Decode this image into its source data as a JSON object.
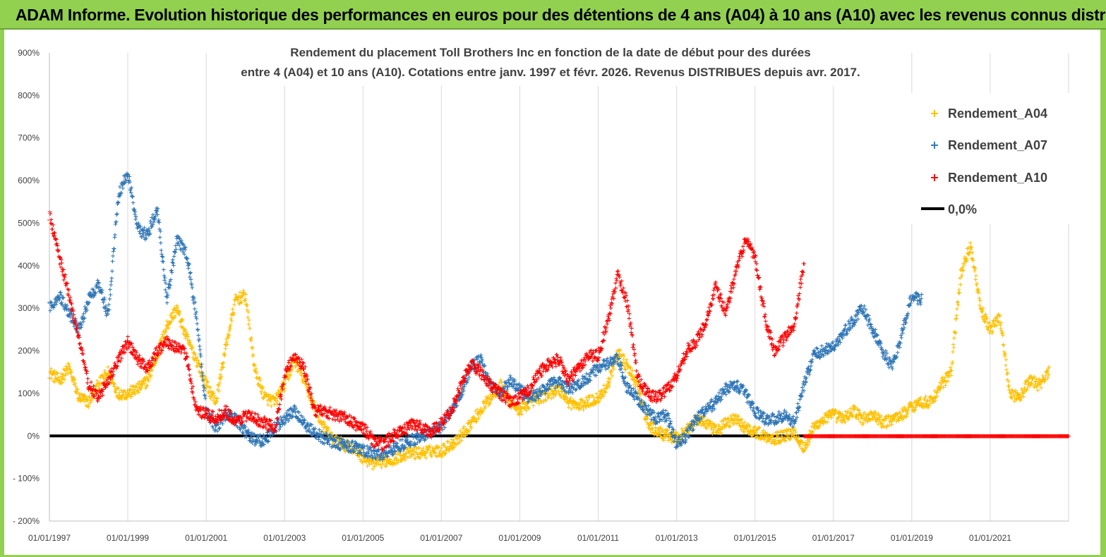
{
  "header": {
    "title": "ADAM Informe. Evolution historique des performances en euros pour des détentions de 4 ans (A04) à 10 ans (A10) avec les revenus connus distribués"
  },
  "chart_data": {
    "type": "scatter",
    "title_line1": "Rendement du placement Toll Brothers Inc en fonction de la date de début pour des durées",
    "title_line2": "entre 4 (A04) et 10 ans (A10). Cotations entre janv. 1997 et févr. 2026. Revenus DISTRIBUES depuis avr. 2017.",
    "xlabel": "",
    "ylabel": "",
    "xlim": [
      1997.0,
      2023.0
    ],
    "ylim": [
      -200,
      900
    ],
    "yticks": [
      900,
      800,
      700,
      600,
      500,
      400,
      300,
      200,
      100,
      0,
      -100,
      -200
    ],
    "ytick_labels": [
      "900%",
      "800%",
      "700%",
      "600%",
      "500%",
      "400%",
      "300%",
      "200%",
      "100%",
      "0%",
      "- 100%",
      "- 200%"
    ],
    "xticks": [
      1997,
      1999,
      2001,
      2003,
      2005,
      2007,
      2009,
      2011,
      2013,
      2015,
      2017,
      2019,
      2021
    ],
    "xtick_labels": [
      "01/01/1997",
      "01/01/1999",
      "01/01/2001",
      "01/01/2003",
      "01/01/2005",
      "01/01/2007",
      "01/01/2009",
      "01/01/2011",
      "01/01/2013",
      "01/01/2015",
      "01/01/2017",
      "01/01/2019",
      "01/01/2021"
    ],
    "grid": "vertical",
    "legend_position": "top-right",
    "colors": {
      "A04": "#ffc000",
      "A07": "#2e75b6",
      "A10": "#ff0000",
      "zero": "#000000",
      "grid": "#d9d9d9"
    },
    "series": [
      {
        "name": "Rendement_A04",
        "key": "A04",
        "marker": "+",
        "x": [
          1997.0,
          1997.25,
          1997.5,
          1997.75,
          1998.0,
          1998.25,
          1998.5,
          1998.75,
          1999.0,
          1999.25,
          1999.5,
          1999.75,
          2000.0,
          2000.25,
          2000.5,
          2000.75,
          2001.0,
          2001.25,
          2001.5,
          2001.75,
          2002.0,
          2002.25,
          2002.5,
          2002.75,
          2003.0,
          2003.25,
          2003.5,
          2003.75,
          2004.0,
          2004.25,
          2004.5,
          2004.75,
          2005.0,
          2005.25,
          2005.5,
          2005.75,
          2006.0,
          2006.25,
          2006.5,
          2006.75,
          2007.0,
          2007.25,
          2007.5,
          2007.75,
          2008.0,
          2008.25,
          2008.5,
          2008.75,
          2009.0,
          2009.25,
          2009.5,
          2009.75,
          2010.0,
          2010.25,
          2010.5,
          2010.75,
          2011.0,
          2011.25,
          2011.5,
          2011.75,
          2012.0,
          2012.25,
          2012.5,
          2012.75,
          2013.0,
          2013.25,
          2013.5,
          2013.75,
          2014.0,
          2014.25,
          2014.5,
          2014.75,
          2015.0,
          2015.25,
          2015.5,
          2015.75,
          2016.0,
          2016.25,
          2016.5,
          2016.75,
          2017.0,
          2017.25,
          2017.5,
          2017.75,
          2018.0,
          2018.25,
          2018.5,
          2018.75,
          2019.0,
          2019.25,
          2019.5,
          2019.75,
          2020.0,
          2020.25,
          2020.5,
          2020.75,
          2021.0,
          2021.25,
          2021.5,
          2021.75,
          2022.0,
          2022.25,
          2022.5
        ],
        "y": [
          150,
          130,
          160,
          90,
          80,
          120,
          150,
          100,
          100,
          110,
          130,
          190,
          260,
          300,
          230,
          180,
          120,
          80,
          210,
          320,
          330,
          150,
          90,
          80,
          120,
          180,
          130,
          70,
          20,
          -10,
          -20,
          -30,
          -50,
          -65,
          -60,
          -55,
          -45,
          -40,
          -40,
          -35,
          -35,
          -20,
          0,
          30,
          60,
          90,
          120,
          80,
          60,
          80,
          90,
          100,
          110,
          80,
          70,
          80,
          90,
          120,
          200,
          160,
          120,
          30,
          10,
          0,
          -5,
          10,
          40,
          30,
          10,
          30,
          40,
          20,
          10,
          0,
          -5,
          0,
          10,
          -30,
          20,
          40,
          50,
          40,
          60,
          40,
          50,
          30,
          40,
          50,
          70,
          80,
          80,
          120,
          150,
          380,
          450,
          300,
          250,
          280,
          100,
          90,
          130,
          120,
          150
        ]
      },
      {
        "name": "Rendement_A07",
        "key": "A07",
        "marker": "+",
        "x": [
          1997.0,
          1997.25,
          1997.5,
          1997.75,
          1998.0,
          1998.25,
          1998.5,
          1998.75,
          1999.0,
          1999.25,
          1999.5,
          1999.75,
          2000.0,
          2000.25,
          2000.5,
          2000.75,
          2001.0,
          2001.25,
          2001.5,
          2001.75,
          2002.0,
          2002.25,
          2002.5,
          2002.75,
          2003.0,
          2003.25,
          2003.5,
          2003.75,
          2004.0,
          2004.25,
          2004.5,
          2004.75,
          2005.0,
          2005.25,
          2005.5,
          2005.75,
          2006.0,
          2006.25,
          2006.5,
          2006.75,
          2007.0,
          2007.25,
          2007.5,
          2007.75,
          2008.0,
          2008.25,
          2008.5,
          2008.75,
          2009.0,
          2009.25,
          2009.5,
          2009.75,
          2010.0,
          2010.25,
          2010.5,
          2010.75,
          2011.0,
          2011.25,
          2011.5,
          2011.75,
          2012.0,
          2012.25,
          2012.5,
          2012.75,
          2013.0,
          2013.25,
          2013.5,
          2013.75,
          2014.0,
          2014.25,
          2014.5,
          2014.75,
          2015.0,
          2015.25,
          2015.5,
          2015.75,
          2016.0,
          2016.25,
          2016.5,
          2016.75,
          2017.0,
          2017.25,
          2017.5,
          2017.75,
          2018.0,
          2018.25,
          2018.5,
          2018.75,
          2019.0,
          2019.25
        ],
        "y": [
          300,
          330,
          290,
          250,
          320,
          360,
          280,
          560,
          620,
          490,
          470,
          540,
          320,
          460,
          430,
          280,
          60,
          20,
          50,
          40,
          10,
          -10,
          -10,
          20,
          40,
          60,
          30,
          10,
          -5,
          -15,
          -20,
          -25,
          -35,
          -40,
          -45,
          -30,
          -20,
          -10,
          0,
          10,
          20,
          60,
          100,
          160,
          180,
          120,
          100,
          130,
          110,
          90,
          100,
          120,
          130,
          110,
          120,
          140,
          160,
          170,
          180,
          110,
          90,
          60,
          40,
          50,
          -20,
          0,
          40,
          60,
          80,
          110,
          120,
          100,
          60,
          40,
          40,
          50,
          30,
          120,
          190,
          200,
          210,
          240,
          270,
          300,
          250,
          200,
          160,
          240,
          330,
          320
        ]
      },
      {
        "name": "Rendement_A10",
        "key": "A10",
        "marker": "+",
        "x": [
          1997.0,
          1997.25,
          1997.5,
          1997.75,
          1998.0,
          1998.25,
          1998.5,
          1998.75,
          1999.0,
          1999.25,
          1999.5,
          1999.75,
          2000.0,
          2000.25,
          2000.5,
          2000.75,
          2001.0,
          2001.25,
          2001.5,
          2001.75,
          2002.0,
          2002.25,
          2002.5,
          2002.75,
          2003.0,
          2003.25,
          2003.5,
          2003.75,
          2004.0,
          2004.25,
          2004.5,
          2004.75,
          2005.0,
          2005.25,
          2005.5,
          2005.75,
          2006.0,
          2006.25,
          2006.5,
          2006.75,
          2007.0,
          2007.25,
          2007.5,
          2007.75,
          2008.0,
          2008.25,
          2008.5,
          2008.75,
          2009.0,
          2009.25,
          2009.5,
          2009.75,
          2010.0,
          2010.25,
          2010.5,
          2010.75,
          2011.0,
          2011.25,
          2011.5,
          2011.75,
          2012.0,
          2012.25,
          2012.5,
          2012.75,
          2013.0,
          2013.25,
          2013.5,
          2013.75,
          2014.0,
          2014.25,
          2014.5,
          2014.75,
          2015.0,
          2015.25,
          2015.5,
          2015.75,
          2016.0,
          2016.25
        ],
        "y": [
          520,
          420,
          330,
          230,
          120,
          90,
          130,
          180,
          220,
          180,
          160,
          200,
          220,
          210,
          190,
          60,
          50,
          40,
          60,
          30,
          50,
          40,
          30,
          20,
          140,
          190,
          160,
          60,
          60,
          50,
          45,
          30,
          20,
          -10,
          -20,
          0,
          10,
          30,
          20,
          10,
          30,
          60,
          120,
          170,
          150,
          120,
          100,
          80,
          90,
          110,
          150,
          170,
          180,
          130,
          160,
          190,
          190,
          270,
          380,
          310,
          140,
          100,
          90,
          110,
          140,
          200,
          220,
          270,
          350,
          290,
          380,
          460,
          420,
          280,
          200,
          230,
          260,
          410
        ]
      },
      {
        "name": "0,0%",
        "key": "zero",
        "style": "line",
        "x": [
          1997.0,
          2016.25
        ],
        "y": [
          0,
          0
        ]
      }
    ],
    "after_2016_A10_zero_markers": {
      "x_start": 2016.25,
      "x_end": 2023.0,
      "y": 0
    }
  }
}
